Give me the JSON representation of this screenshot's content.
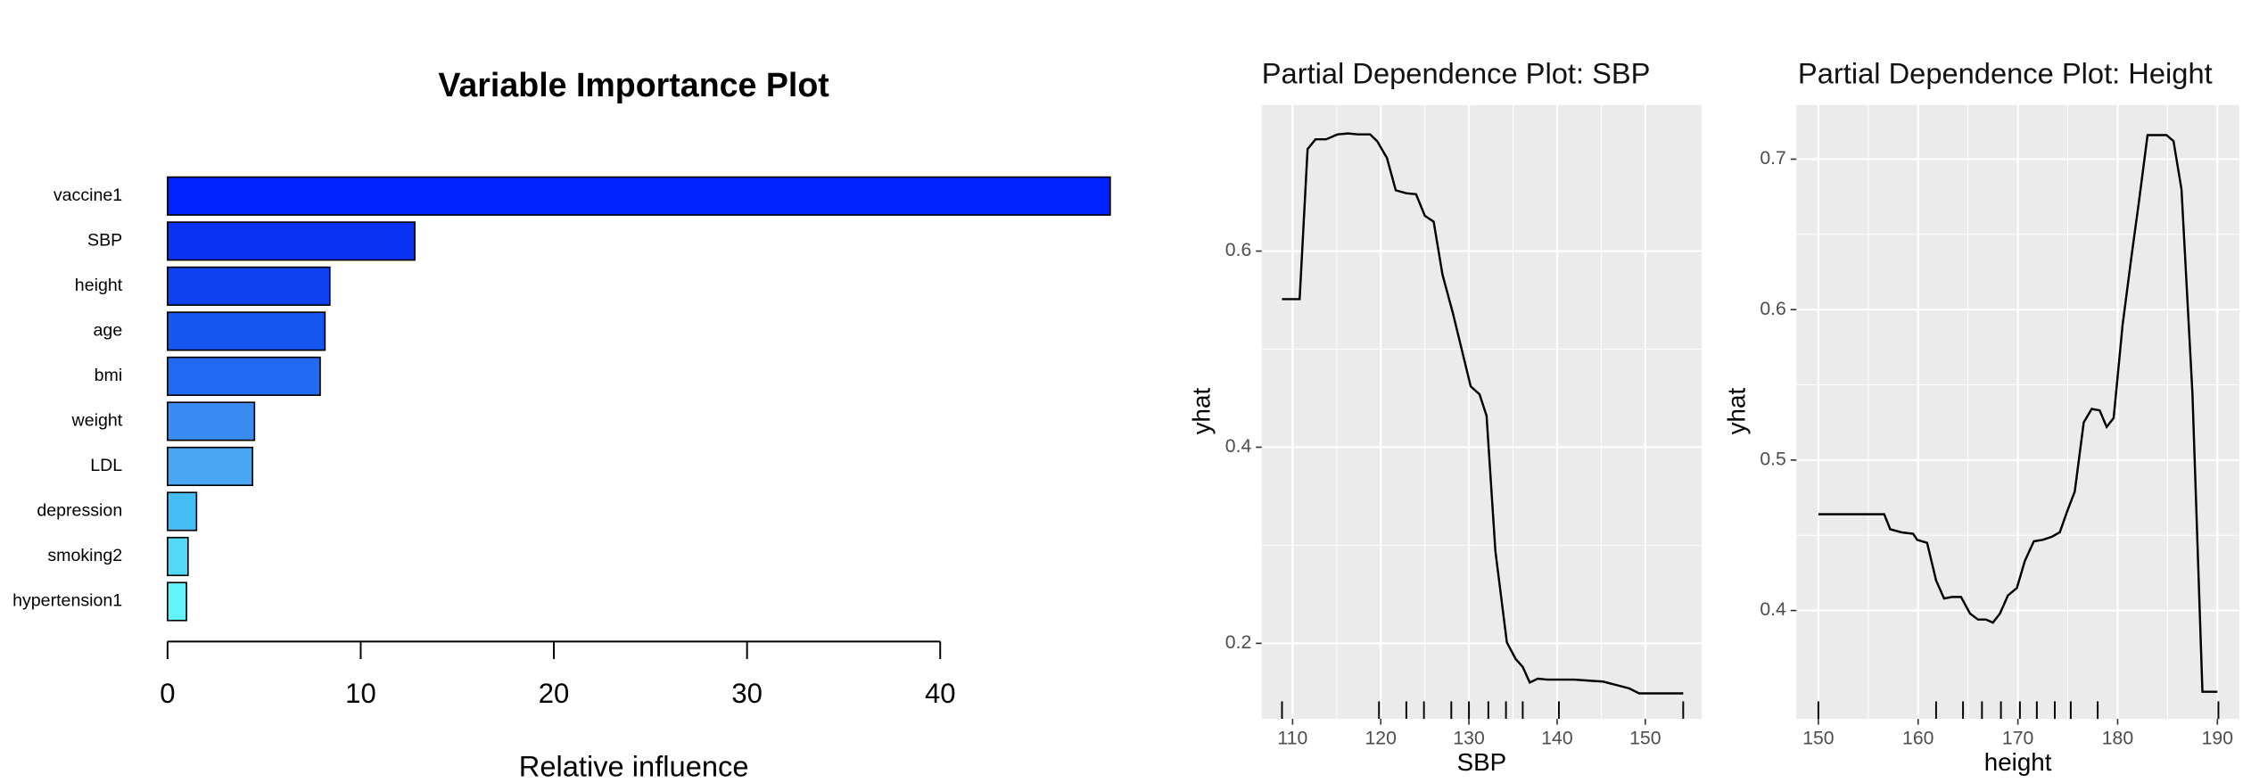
{
  "chart_data": [
    {
      "type": "bar",
      "orientation": "horizontal",
      "title": "Variable Importance Plot",
      "x_label": "Relative influence",
      "categories": [
        "vaccine1",
        "SBP",
        "height",
        "age",
        "bmi",
        "weight",
        "LDL",
        "depression",
        "smoking2",
        "hypertension1"
      ],
      "values": [
        48.8,
        12.8,
        8.4,
        8.15,
        7.9,
        4.5,
        4.4,
        1.5,
        1.06,
        0.98
      ],
      "colors": [
        "#0022ff",
        "#0b31f4",
        "#0f43f2",
        "#1657f2",
        "#226af2",
        "#3a8bf2",
        "#4aa5f2",
        "#47bdf6",
        "#52d9f7",
        "#62f5fb"
      ],
      "xlim": [
        0,
        48.8
      ],
      "xticks": [
        0,
        10,
        20,
        30,
        40
      ]
    },
    {
      "type": "line",
      "title": "Partial Dependence Plot: SBP",
      "x_label": "SBP",
      "y_label": "yhat",
      "x": [
        108.8,
        110.8,
        111.7,
        112.6,
        113.8,
        115.1,
        116.3,
        117.4,
        118.8,
        119.6,
        120.7,
        121.7,
        122.9,
        124.0,
        125.0,
        126.0,
        127.0,
        128.2,
        129.2,
        130.2,
        131.2,
        132.0,
        133.0,
        134.3,
        135.3,
        136.1,
        136.9,
        137.8,
        138.9,
        141.9,
        145.2,
        146.5,
        148.2,
        149.3,
        154.3
      ],
      "series": [
        {
          "name": "yhat",
          "color": "#000000",
          "values": [
            0.551,
            0.551,
            0.704,
            0.714,
            0.714,
            0.719,
            0.72,
            0.719,
            0.719,
            0.712,
            0.695,
            0.662,
            0.659,
            0.658,
            0.636,
            0.63,
            0.576,
            0.536,
            0.499,
            0.462,
            0.454,
            0.432,
            0.294,
            0.201,
            0.184,
            0.176,
            0.16,
            0.164,
            0.163,
            0.163,
            0.161,
            0.158,
            0.154,
            0.149,
            0.149
          ]
        }
      ],
      "rug": [
        108.8,
        119.8,
        122.9,
        124.9,
        128.0,
        130.0,
        132.2,
        134.2,
        136.1,
        140.2,
        154.3
      ],
      "xlim": [
        106.5,
        156.4
      ],
      "ylim": [
        0.123,
        0.749
      ],
      "xticks": [
        110,
        120,
        130,
        140,
        150
      ],
      "yticks": [
        0.2,
        0.4,
        0.6
      ],
      "grid": true
    },
    {
      "type": "line",
      "title": "Partial Dependence Plot: Height",
      "x_label": "height",
      "y_label": "yhat",
      "x": [
        150,
        156.6,
        157.2,
        158.3,
        159.5,
        159.9,
        160.9,
        161.8,
        162.6,
        163.4,
        164.3,
        165.2,
        166.0,
        166.8,
        167.5,
        168.2,
        169.0,
        169.9,
        170.7,
        171.6,
        172.5,
        173.4,
        174.2,
        175.0,
        175.7,
        176.6,
        177.4,
        178.2,
        178.9,
        179.6,
        180.5,
        181.4,
        182.1,
        183.0,
        183.9,
        184.9,
        185.6,
        186.4,
        187.5,
        188.5,
        190.0
      ],
      "series": [
        {
          "name": "yhat",
          "color": "#000000",
          "values": [
            0.464,
            0.464,
            0.454,
            0.452,
            0.451,
            0.447,
            0.445,
            0.42,
            0.408,
            0.409,
            0.409,
            0.398,
            0.394,
            0.394,
            0.392,
            0.398,
            0.41,
            0.415,
            0.433,
            0.446,
            0.447,
            0.449,
            0.452,
            0.467,
            0.479,
            0.525,
            0.534,
            0.533,
            0.522,
            0.528,
            0.59,
            0.636,
            0.67,
            0.716,
            0.716,
            0.716,
            0.712,
            0.68,
            0.544,
            0.346,
            0.346
          ]
        }
      ],
      "rug": [
        150,
        161.8,
        164.5,
        166.4,
        168.3,
        170.2,
        171.9,
        173.7,
        175.3,
        178.0,
        190.1
      ],
      "xlim": [
        147.8,
        192.2
      ],
      "ylim": [
        0.328,
        0.736
      ],
      "xticks": [
        150,
        160,
        170,
        180,
        190
      ],
      "yticks": [
        0.4,
        0.5,
        0.6,
        0.7
      ],
      "grid": true
    }
  ]
}
